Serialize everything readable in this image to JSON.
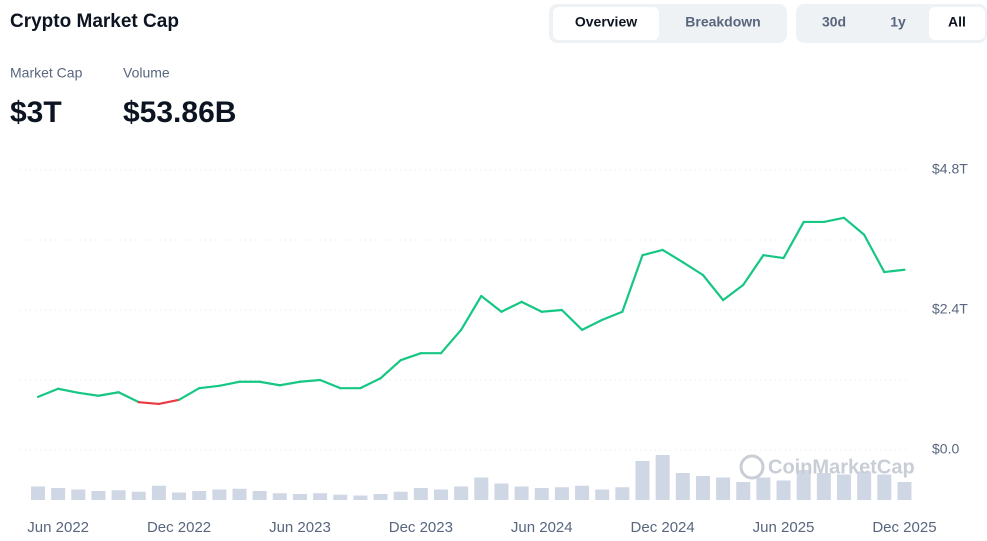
{
  "header": {
    "title": "Crypto Market Cap",
    "tabs": [
      "Overview",
      "Breakdown"
    ],
    "ranges": [
      "30d",
      "1y",
      "All"
    ]
  },
  "stats": [
    {
      "label": "Market Cap",
      "value": "$3T"
    },
    {
      "label": "Volume",
      "value": "$53.86B"
    }
  ],
  "watermark": "CoinMarketCap",
  "chart_data": {
    "type": "line",
    "x": [
      "May 2022",
      "Jun 2022",
      "Jul 2022",
      "Aug 2022",
      "Sep 2022",
      "Oct 2022",
      "Nov 2022",
      "Dec 2022",
      "Jan 2023",
      "Feb 2023",
      "Mar 2023",
      "Apr 2023",
      "May 2023",
      "Jun 2023",
      "Jul 2023",
      "Aug 2023",
      "Sep 2023",
      "Oct 2023",
      "Nov 2023",
      "Dec 2023",
      "Jan 2024",
      "Feb 2024",
      "Mar 2024",
      "Apr 2024",
      "May 2024",
      "Jun 2024",
      "Jul 2024",
      "Aug 2024",
      "Sep 2024",
      "Oct 2024",
      "Nov 2024",
      "Dec 2024",
      "Jan 2025",
      "Feb 2025",
      "Mar 2025",
      "Apr 2025",
      "May 2025",
      "Jun 2025",
      "Jul 2025",
      "Aug 2025",
      "Sep 2025",
      "Oct 2025",
      "Nov 2025",
      "Dec 2025"
    ],
    "series": [
      {
        "name": "Market Cap",
        "color": "#16c784",
        "color_down": "#ea3943",
        "values": [
          0.91,
          1.05,
          0.98,
          0.93,
          0.99,
          0.82,
          0.79,
          0.86,
          1.06,
          1.1,
          1.17,
          1.17,
          1.11,
          1.17,
          1.2,
          1.06,
          1.06,
          1.23,
          1.54,
          1.66,
          1.66,
          2.06,
          2.64,
          2.37,
          2.54,
          2.37,
          2.4,
          2.06,
          2.23,
          2.37,
          3.34,
          3.43,
          3.22,
          3.0,
          2.57,
          2.83,
          3.34,
          3.29,
          3.91,
          3.91,
          3.98,
          3.69,
          3.05,
          3.09
        ]
      },
      {
        "name": "Volume",
        "color": "#cfd6e4",
        "values": [
          90,
          80,
          70,
          60,
          65,
          55,
          95,
          50,
          60,
          70,
          75,
          60,
          45,
          40,
          45,
          35,
          30,
          40,
          55,
          80,
          70,
          90,
          150,
          110,
          90,
          80,
          85,
          95,
          70,
          85,
          260,
          300,
          180,
          160,
          150,
          120,
          150,
          130,
          200,
          180,
          170,
          190,
          170,
          120
        ]
      }
    ],
    "xticks": [
      "Jun 2022",
      "Dec 2022",
      "Jun 2023",
      "Dec 2023",
      "Jun 2024",
      "Dec 2024",
      "Jun 2025",
      "Dec 2025"
    ],
    "ylim": [
      0,
      4.8
    ],
    "yticks": [
      {
        "value": 0,
        "label": "$0.0"
      },
      {
        "value": 1.2,
        "label": null
      },
      {
        "value": 2.4,
        "label": "$2.4T"
      },
      {
        "value": 3.6,
        "label": null
      },
      {
        "value": 4.8,
        "label": "$4.8T"
      }
    ],
    "grid": true
  }
}
